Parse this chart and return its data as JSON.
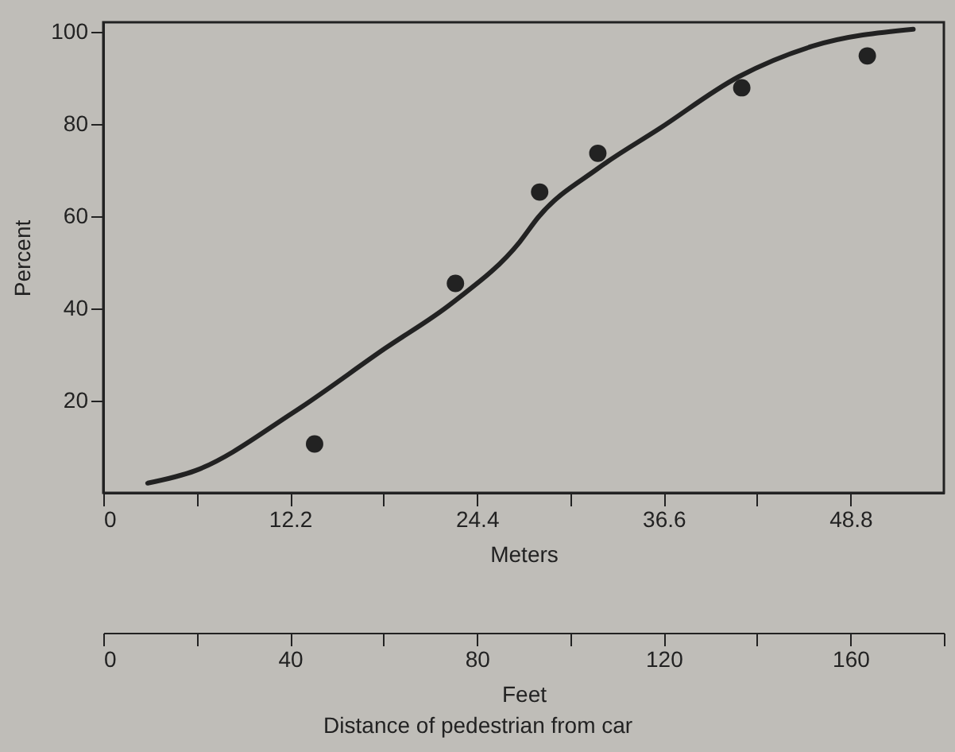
{
  "chart_data": {
    "type": "scatter",
    "ylabel": "Percent",
    "xlabel": "Meters",
    "x2label": "Feet",
    "annotations": [
      "Distance of pedestrian from car"
    ],
    "xlim": [
      0,
      54.9
    ],
    "xticks": [
      0,
      {
        "value": 6.1,
        "label": null
      },
      12.2,
      {
        "value": 18.3,
        "label": null
      },
      24.4,
      {
        "value": 30.5,
        "label": null
      },
      36.6,
      {
        "value": 42.7,
        "label": null
      },
      48.8
    ],
    "x2lim": [
      0,
      180
    ],
    "x2ticks": [
      0,
      {
        "value": 20,
        "label": null
      },
      40,
      {
        "value": 60,
        "label": null
      },
      80,
      {
        "value": 100,
        "label": null
      },
      120,
      {
        "value": 140,
        "label": null
      },
      160,
      {
        "value": 180,
        "label": null
      }
    ],
    "ylim": [
      0,
      102
    ],
    "yticks": [
      20,
      40,
      60,
      80,
      100
    ],
    "grid": false,
    "marker": "circle",
    "series": [
      {
        "color": "#222222",
        "x": [
          13.8,
          23.0,
          28.5,
          32.3,
          41.7,
          49.9
        ],
        "values": [
          10.6,
          45.4,
          65.2,
          73.6,
          87.8,
          94.7
        ]
      },
      {
        "type": "line",
        "color": "#222222",
        "marker": "none",
        "line_style": "solid",
        "x": [
          2.9,
          6.0,
          12.4,
          18.4,
          22.8,
          27.2,
          28.4,
          32.3,
          36.3,
          41.5,
          46.3,
          52.9
        ],
        "values": [
          2.1,
          4.8,
          17.4,
          31.3,
          41.2,
          54.4,
          59.7,
          70.3,
          78.9,
          90.2,
          96.8,
          100.5
        ]
      }
    ]
  }
}
